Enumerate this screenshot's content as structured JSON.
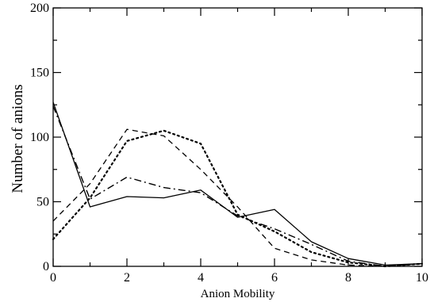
{
  "chart_data": {
    "type": "line",
    "title": "",
    "xlabel": "Anion Mobility",
    "ylabel": "Number of anions",
    "xlim": [
      0,
      10
    ],
    "ylim": [
      0,
      200
    ],
    "x_ticks": [
      0,
      2,
      4,
      6,
      8,
      10
    ],
    "y_ticks": [
      0,
      50,
      100,
      150,
      200
    ],
    "x_tick_labels": [
      "0",
      "2",
      "4",
      "6",
      "8",
      "10"
    ],
    "y_tick_labels": [
      "0",
      "50",
      "100",
      "150",
      "200"
    ],
    "grid": false,
    "legend": "none",
    "series": [
      {
        "line_style": "solid",
        "color": "#000000",
        "x": [
          0,
          1,
          2,
          3,
          4,
          5,
          6,
          7,
          8,
          9,
          10
        ],
        "y": [
          127,
          46,
          54,
          53,
          59,
          38,
          44,
          19,
          6,
          1,
          2
        ]
      },
      {
        "line_style": "dashed",
        "color": "#000000",
        "x": [
          0,
          1,
          2,
          3,
          4,
          5,
          6,
          7,
          8,
          9,
          10
        ],
        "y": [
          35,
          64,
          106,
          101,
          75,
          46,
          14,
          5,
          1,
          0,
          2
        ]
      },
      {
        "line_style": "dotted",
        "color": "#000000",
        "x": [
          0,
          1,
          2,
          3,
          4,
          5,
          6,
          7,
          8,
          9,
          10
        ],
        "y": [
          21,
          53,
          97,
          105,
          95,
          40,
          27,
          11,
          3,
          0,
          2
        ]
      },
      {
        "line_style": "dash-dot",
        "color": "#000000",
        "x": [
          0,
          1,
          2,
          3,
          4,
          5,
          6,
          7,
          8,
          9,
          10
        ],
        "y": [
          124,
          52,
          69,
          61,
          57,
          39,
          29,
          17,
          4,
          0,
          2
        ]
      }
    ]
  }
}
